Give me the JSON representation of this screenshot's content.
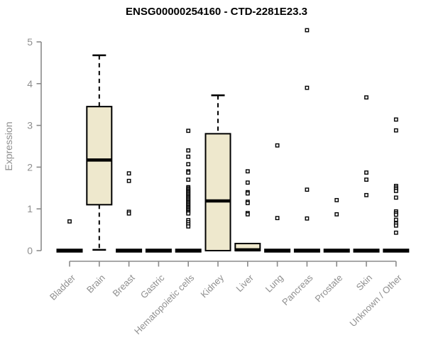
{
  "chart_data": {
    "type": "boxplot",
    "title": "ENSG00000254160 - CTD-2281E23.3",
    "ylabel": "Expression",
    "xlabel": "",
    "ylim": [
      0,
      5
    ],
    "yticks": [
      0,
      1,
      2,
      3,
      4,
      5
    ],
    "grid": false,
    "legend": "none",
    "categories": [
      "Bladder",
      "Brain",
      "Breast",
      "Gastric",
      "Hematopoietic cells",
      "Kidney",
      "Liver",
      "Lung",
      "Pancreas",
      "Prostate",
      "Skin",
      "Unknown / Other"
    ],
    "boxes": [
      {
        "category": "Bladder",
        "q1": 0,
        "median": 0,
        "q3": 0,
        "whisker_low": 0,
        "whisker_high": 0,
        "outliers": [
          0.7
        ]
      },
      {
        "category": "Brain",
        "q1": 1.1,
        "median": 2.17,
        "q3": 3.45,
        "whisker_low": 0.02,
        "whisker_high": 4.68,
        "outliers": []
      },
      {
        "category": "Breast",
        "q1": 0,
        "median": 0,
        "q3": 0,
        "whisker_low": 0,
        "whisker_high": 0,
        "outliers": [
          1.85,
          1.67,
          0.93,
          0.89
        ]
      },
      {
        "category": "Gastric",
        "q1": 0,
        "median": 0,
        "q3": 0,
        "whisker_low": 0,
        "whisker_high": 0,
        "outliers": []
      },
      {
        "category": "Hematopoietic cells",
        "q1": 0,
        "median": 0,
        "q3": 0,
        "whisker_low": 0,
        "whisker_high": 0,
        "outliers": [
          2.87,
          2.4,
          2.25,
          2.07,
          1.9,
          1.87,
          1.7,
          1.52,
          1.49,
          1.46,
          1.43,
          1.4,
          1.37,
          1.34,
          1.31,
          1.28,
          1.25,
          1.22,
          1.19,
          1.16,
          1.13,
          1.1,
          1.07,
          1.04,
          1.01,
          0.98,
          0.95,
          0.92,
          0.89,
          0.73,
          0.68,
          0.63,
          0.58
        ]
      },
      {
        "category": "Kidney",
        "q1": 0,
        "median": 1.19,
        "q3": 2.8,
        "whisker_low": 0,
        "whisker_high": 3.72,
        "outliers": []
      },
      {
        "category": "Liver",
        "q1": 0,
        "median": 0.02,
        "q3": 0.17,
        "whisker_low": 0,
        "whisker_high": 0.17,
        "outliers": [
          1.9,
          1.63,
          1.4,
          1.37,
          1.17,
          1.14,
          0.9,
          0.87
        ]
      },
      {
        "category": "Lung",
        "q1": 0,
        "median": 0,
        "q3": 0,
        "whisker_low": 0,
        "whisker_high": 0,
        "outliers": [
          2.52,
          0.78
        ]
      },
      {
        "category": "Pancreas",
        "q1": 0,
        "median": 0,
        "q3": 0,
        "whisker_low": 0,
        "whisker_high": 0,
        "outliers": [
          5.28,
          3.9,
          1.46,
          0.77
        ]
      },
      {
        "category": "Prostate",
        "q1": 0,
        "median": 0,
        "q3": 0,
        "whisker_low": 0,
        "whisker_high": 0,
        "outliers": [
          1.21,
          0.87
        ]
      },
      {
        "category": "Skin",
        "q1": 0,
        "median": 0,
        "q3": 0,
        "whisker_low": 0,
        "whisker_high": 0,
        "outliers": [
          3.67,
          1.87,
          1.7,
          1.33
        ]
      },
      {
        "category": "Unknown / Other",
        "q1": 0,
        "median": 0,
        "q3": 0,
        "whisker_low": 0,
        "whisker_high": 0,
        "outliers": [
          3.14,
          2.88,
          1.55,
          1.51,
          1.47,
          1.43,
          1.27,
          0.94,
          0.9,
          0.86,
          0.74,
          0.65,
          0.6,
          0.43
        ]
      }
    ],
    "colors": {
      "box_fill": "#EEE8CD",
      "box_stroke": "#000000",
      "median": "#000000",
      "whisker": "#000000",
      "outlier_stroke": "#000000",
      "outlier_fill": "#ffffff",
      "axis": "#8a8a8a",
      "label_text": "#8f8f8f",
      "title_text": "#000000",
      "background": "#ffffff"
    },
    "marker": "open-square",
    "whisker_style": "dashed"
  }
}
